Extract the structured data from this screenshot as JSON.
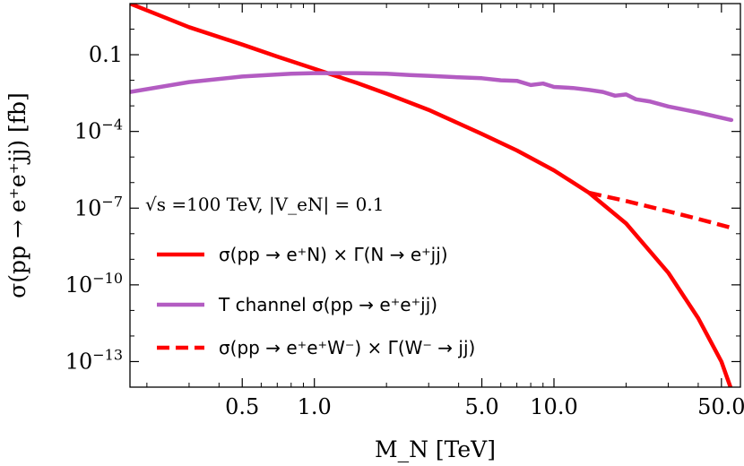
{
  "chart_data": {
    "type": "line",
    "xlabel": "M_N [TeV]",
    "ylabel": "σ(pp → e⁺e⁺jj) [fb]",
    "x_scale": "log",
    "y_scale": "log",
    "xlim": [
      0.17,
      60
    ],
    "ylim": [
      1e-14,
      10
    ],
    "x_ticks": [
      {
        "value": 0.5,
        "label": "0.5"
      },
      {
        "value": 1.0,
        "label": "1.0"
      },
      {
        "value": 5.0,
        "label": "5.0"
      },
      {
        "value": 10.0,
        "label": "10.0"
      },
      {
        "value": 50.0,
        "label": "50.0"
      }
    ],
    "y_ticks": [
      {
        "value": 0.1,
        "base": "0.1",
        "exp": ""
      },
      {
        "value": 0.0001,
        "base": "10",
        "exp": "−4"
      },
      {
        "value": 1e-07,
        "base": "10",
        "exp": "−7"
      },
      {
        "value": 1e-10,
        "base": "10",
        "exp": "−10"
      },
      {
        "value": 1e-13,
        "base": "10",
        "exp": "−13"
      }
    ],
    "annotation": "√s =100 TeV, |V_eN| = 0.1",
    "legend_position": "center-left",
    "series": [
      {
        "name": "σ(pp → e⁺N) × Γ(N → e⁺jj)",
        "color": "#ff0000",
        "style": "solid",
        "x": [
          0.17,
          0.3,
          0.5,
          0.7,
          1.0,
          1.5,
          2.0,
          3.0,
          5.0,
          7.0,
          10.0,
          14.0,
          20.0,
          30.0,
          40.0,
          50.0,
          55.0
        ],
        "y": [
          10,
          1.2,
          0.25,
          0.085,
          0.028,
          0.008,
          0.003,
          0.0007,
          8e-05,
          1.8e-05,
          3e-06,
          4e-07,
          2.5e-08,
          3e-10,
          5e-12,
          1e-13,
          8e-15
        ]
      },
      {
        "name": "T channel σ(pp → e⁺e⁺jj)",
        "color": "#b35cc2",
        "style": "solid",
        "x": [
          0.17,
          0.3,
          0.5,
          0.8,
          1.0,
          1.5,
          2.0,
          2.5,
          3.0,
          4.0,
          5.0,
          6.0,
          7.0,
          8.0,
          9.0,
          10.0,
          12.0,
          14.0,
          16.0,
          18.0,
          20.0,
          22.0,
          25.0,
          30.0,
          40.0,
          55.0
        ],
        "y": [
          0.0035,
          0.0085,
          0.014,
          0.018,
          0.019,
          0.019,
          0.018,
          0.016,
          0.015,
          0.013,
          0.012,
          0.01,
          0.0095,
          0.0065,
          0.0075,
          0.0055,
          0.005,
          0.0042,
          0.0035,
          0.0025,
          0.0028,
          0.0018,
          0.0015,
          0.00095,
          0.00055,
          0.00028
        ]
      },
      {
        "name": "σ(pp → e⁺e⁺W⁻) × Γ(W⁻ → jj)",
        "color": "#ff0000",
        "style": "dashed",
        "x": [
          14.0,
          20.0,
          30.0,
          40.0,
          55.0
        ],
        "y": [
          4e-07,
          1.9e-07,
          7.5e-08,
          3.8e-08,
          1.7e-08
        ]
      }
    ]
  }
}
